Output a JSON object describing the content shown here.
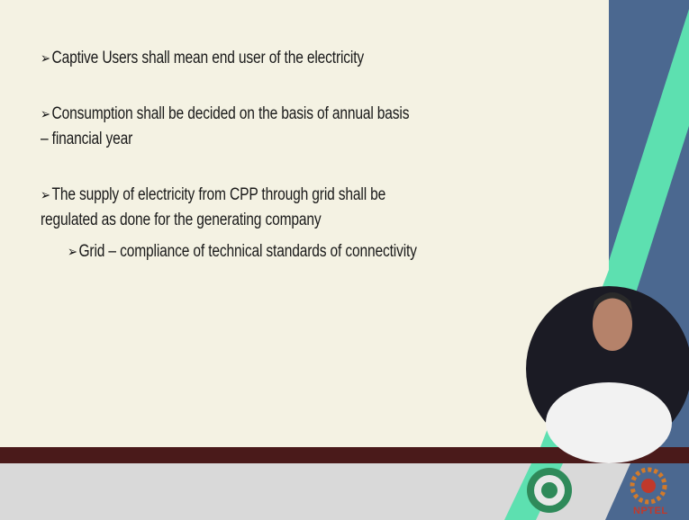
{
  "slide": {
    "bullets": [
      {
        "lines": [
          "Captive Users shall mean end user of the electricity"
        ]
      },
      {
        "lines": [
          "Consumption shall be decided on the basis of annual basis",
          "– financial year"
        ]
      },
      {
        "lines": [
          "The supply of electricity from CPP through grid shall be",
          "regulated as done for the generating company"
        ]
      },
      {
        "lines": [
          "Grid – compliance of technical standards of connectivity"
        ]
      }
    ]
  },
  "footer": {
    "logo_text": "NPTEL"
  }
}
